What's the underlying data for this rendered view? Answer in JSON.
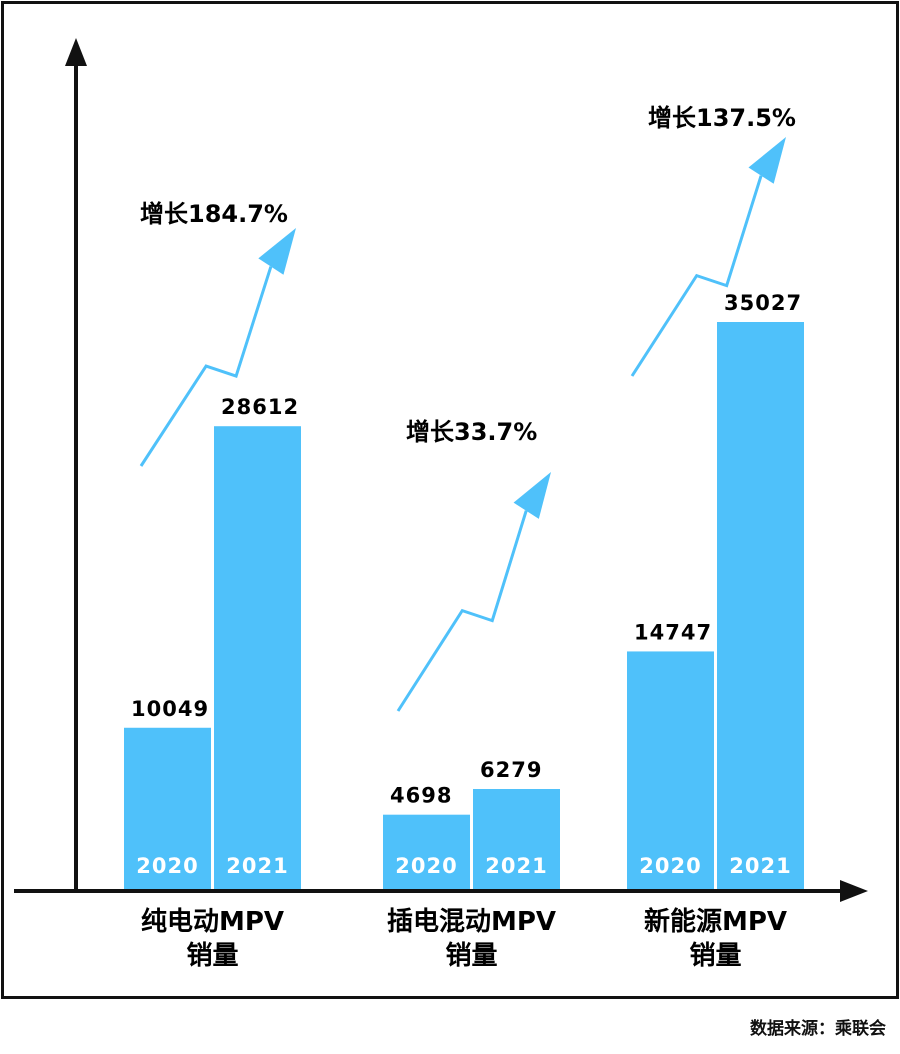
{
  "chart_data": {
    "type": "bar",
    "categories": [
      [
        "纯电动MPV",
        "销量"
      ],
      [
        "插电混动MPV",
        "销量"
      ],
      [
        "新能源MPV",
        "销量"
      ]
    ],
    "series": [
      {
        "name": "2020",
        "values": [
          10049,
          4698,
          14747
        ]
      },
      {
        "name": "2021",
        "values": [
          28612,
          6279,
          35027
        ]
      }
    ],
    "growth_labels": [
      "增长184.7%",
      "增长33.7%",
      "增长137.5%"
    ],
    "ylim": [
      0,
      40000
    ],
    "grid": false,
    "bar_color": "#4FC1FA",
    "arrow_color": "#4FC1FA",
    "axis_color": "#111111"
  },
  "source": "数据来源：乘联会"
}
